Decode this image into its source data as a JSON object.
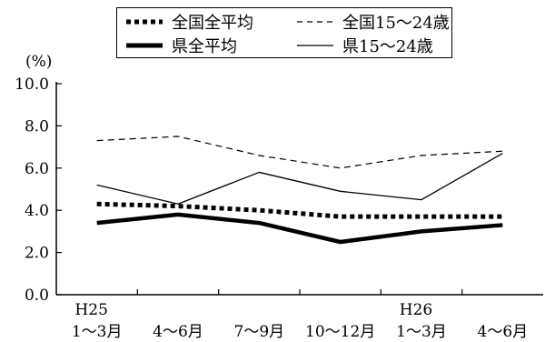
{
  "chart_data": {
    "type": "line",
    "y_unit_label": "(%)",
    "ylim": [
      0,
      10
    ],
    "yticks": [
      "0.0",
      "2.0",
      "4.0",
      "6.0",
      "8.0",
      "10.0"
    ],
    "categories": [
      {
        "era": "H25",
        "label": "1～3月"
      },
      {
        "era": "",
        "label": "4～6月"
      },
      {
        "era": "",
        "label": "7～9月"
      },
      {
        "era": "",
        "label": "10～12月"
      },
      {
        "era": "H26",
        "label": "1～3月"
      },
      {
        "era": "",
        "label": "4～6月"
      }
    ],
    "series": [
      {
        "name": "全国全平均",
        "style": "thick-dotted",
        "color": "#000000",
        "values": [
          4.3,
          4.2,
          4.0,
          3.7,
          3.7,
          3.7
        ]
      },
      {
        "name": "全国15～24歳",
        "style": "thin-dashed",
        "color": "#000000",
        "values": [
          7.3,
          7.5,
          6.6,
          6.0,
          6.6,
          6.8
        ]
      },
      {
        "name": "県全平均",
        "style": "thick-solid",
        "color": "#000000",
        "values": [
          3.4,
          3.8,
          3.4,
          2.5,
          3.0,
          3.3
        ]
      },
      {
        "name": "県15～24歳",
        "style": "thin-solid",
        "color": "#000000",
        "values": [
          5.2,
          4.3,
          5.8,
          4.9,
          4.5,
          6.7
        ]
      }
    ],
    "legend_position": "top-center",
    "grid": false
  }
}
